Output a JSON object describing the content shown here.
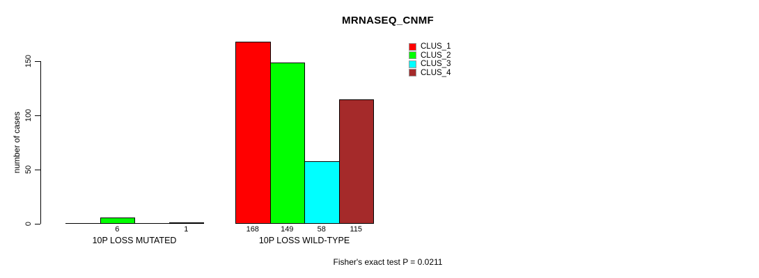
{
  "chart_data": {
    "type": "bar",
    "title": "MRNASEQ_CNMF",
    "ylabel": "number of cases",
    "xlabel": "",
    "yticks": [
      0,
      50,
      100,
      150
    ],
    "ylim": [
      0,
      175
    ],
    "grid": false,
    "legend_position": "top-right",
    "categories": [
      "10P LOSS MUTATED",
      "10P LOSS WILD-TYPE"
    ],
    "series": [
      {
        "name": "CLUS_1",
        "color": "#FF0000",
        "values": [
          0,
          168
        ]
      },
      {
        "name": "CLUS_2",
        "color": "#00FF00",
        "values": [
          6,
          149
        ]
      },
      {
        "name": "CLUS_3",
        "color": "#00FFFF",
        "values": [
          0,
          58
        ]
      },
      {
        "name": "CLUS_4",
        "color": "#A52A2A",
        "values": [
          1,
          115
        ]
      }
    ],
    "visible_bar_value_labels": [
      "6",
      "1",
      "168",
      "149",
      "58",
      "115"
    ],
    "show_zero_value_labels": false,
    "annotation": "Fisher's exact test P = 0.0211",
    "colors": {
      "axis": "#000000",
      "background": "#FFFFFF"
    }
  }
}
